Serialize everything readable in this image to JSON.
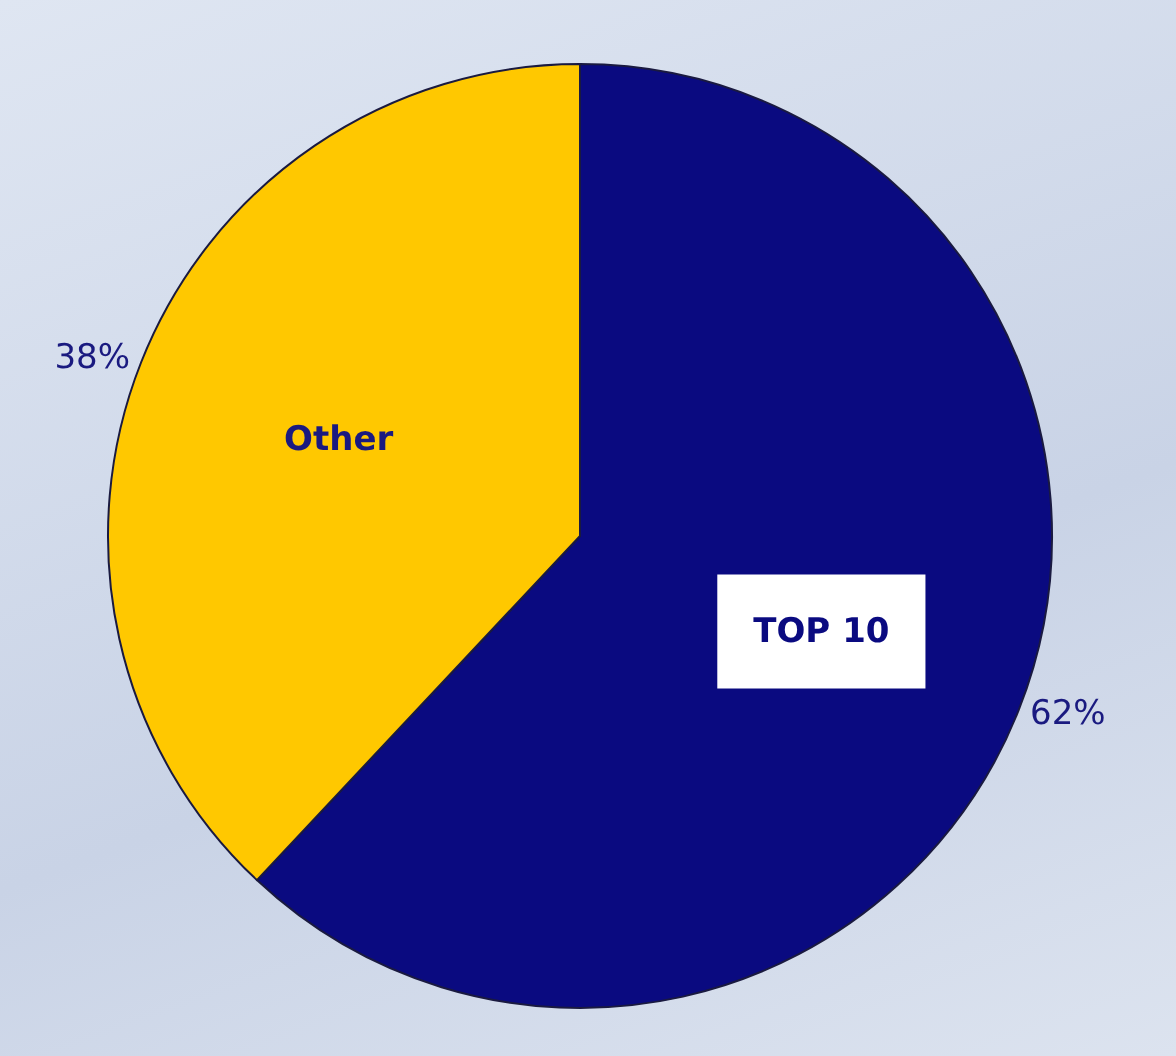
{
  "chart_data": {
    "type": "pie",
    "categories": [
      "TOP 10",
      "Other"
    ],
    "values": [
      62,
      38
    ],
    "colors": [
      "#0a0a80",
      "#ffc800"
    ],
    "value_labels": [
      "62%",
      "38%"
    ]
  }
}
